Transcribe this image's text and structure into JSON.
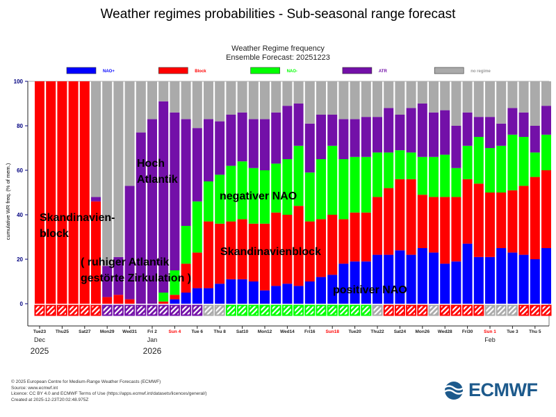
{
  "page_title": "Weather regimes probabilities - Sub-seasonal range forecast",
  "footer": {
    "lines": [
      "© 2025 European Centre for Medium-Range Weather Forecasts (ECMWF)",
      "Source: www.ecmwf.int",
      "Licence: CC BY 4.0 and ECMWF Terms of Use (https://apps.ecmwf.int/datasets/licences/general/)",
      "Created at 2025-12-23T20:02:48.975Z"
    ],
    "logo_text": "ECMWF"
  },
  "chart_data": {
    "type": "bar",
    "stacked": true,
    "title": "Weather Regime frequency",
    "subtitle": "Ensemble Forecast: 20251223",
    "ylabel": "cumulative WR freq. (% of mem.)",
    "xlabel": "",
    "ylim": [
      0,
      100
    ],
    "yticks": [
      0,
      20,
      40,
      60,
      80,
      100
    ],
    "grid": false,
    "legend_position": "top",
    "x_dates": [
      "2025-12-23",
      "2025-12-24",
      "2025-12-25",
      "2025-12-26",
      "2025-12-27",
      "2025-12-28",
      "2025-12-29",
      "2025-12-30",
      "2025-12-31",
      "2026-01-01",
      "2026-01-02",
      "2026-01-03",
      "2026-01-04",
      "2026-01-05",
      "2026-01-06",
      "2026-01-07",
      "2026-01-08",
      "2026-01-09",
      "2026-01-10",
      "2026-01-11",
      "2026-01-12",
      "2026-01-13",
      "2026-01-14",
      "2026-01-15",
      "2026-01-16",
      "2026-01-17",
      "2026-01-18",
      "2026-01-19",
      "2026-01-20",
      "2026-01-21",
      "2026-01-22",
      "2026-01-23",
      "2026-01-24",
      "2026-01-25",
      "2026-01-26",
      "2026-01-27",
      "2026-01-28",
      "2026-01-29",
      "2026-01-30",
      "2026-01-31",
      "2026-02-01",
      "2026-02-02",
      "2026-02-03",
      "2026-02-04",
      "2026-02-05",
      "2026-02-06"
    ],
    "tick_labels": [
      {
        "text": "Tue23",
        "sunday": false
      },
      {
        "text": "Thu25",
        "sunday": false
      },
      {
        "text": "Sat27",
        "sunday": false
      },
      {
        "text": "Mon29",
        "sunday": false
      },
      {
        "text": "Wed31",
        "sunday": false
      },
      {
        "text": "Fri 2",
        "sunday": false
      },
      {
        "text": "Sun 4",
        "sunday": true
      },
      {
        "text": "Tue 6",
        "sunday": false
      },
      {
        "text": "Thu 8",
        "sunday": false
      },
      {
        "text": "Sat10",
        "sunday": false
      },
      {
        "text": "Mon12",
        "sunday": false
      },
      {
        "text": "Wed14",
        "sunday": false
      },
      {
        "text": "Fri16",
        "sunday": false
      },
      {
        "text": "Sun18",
        "sunday": true
      },
      {
        "text": "Tue20",
        "sunday": false
      },
      {
        "text": "Thu22",
        "sunday": false
      },
      {
        "text": "Sat24",
        "sunday": false
      },
      {
        "text": "Mon26",
        "sunday": false
      },
      {
        "text": "Wed28",
        "sunday": false
      },
      {
        "text": "Fri30",
        "sunday": false
      },
      {
        "text": "Sun 1",
        "sunday": true
      },
      {
        "text": "Tue 3",
        "sunday": false
      },
      {
        "text": "Thu 5",
        "sunday": false
      }
    ],
    "month_labels": [
      {
        "month": "Dec",
        "year": "2025",
        "tick": 0
      },
      {
        "month": "Jan",
        "year": "2026",
        "tick": 5
      },
      {
        "month": "Feb",
        "year": "",
        "tick": 20
      }
    ],
    "series": [
      {
        "name": "NAO+",
        "color": "#0000ff",
        "values": [
          0,
          0,
          0,
          0,
          0,
          0,
          0,
          0,
          0,
          0,
          0,
          0,
          2,
          5,
          7,
          7,
          9,
          11,
          11,
          10,
          6,
          8,
          9,
          8,
          10,
          12,
          13,
          18,
          19,
          19,
          22,
          22,
          24,
          22,
          25,
          23,
          18,
          19,
          27,
          21,
          21,
          25,
          23,
          22,
          20,
          25
        ]
      },
      {
        "name": "Block",
        "color": "#ff0000",
        "values": [
          100,
          100,
          100,
          100,
          100,
          46,
          3,
          4,
          2,
          0,
          0,
          1,
          2,
          13,
          16,
          30,
          27,
          26,
          27,
          26,
          30,
          33,
          31,
          36,
          27,
          26,
          27,
          20,
          22,
          22,
          26,
          30,
          32,
          34,
          24,
          25,
          30,
          29,
          29,
          33,
          29,
          25,
          28,
          31,
          37,
          35
        ]
      },
      {
        "name": "NAO-",
        "color": "#00ff00",
        "values": [
          0,
          0,
          0,
          0,
          0,
          0,
          0,
          0,
          0,
          0,
          0,
          4,
          11,
          17,
          23,
          18,
          22,
          25,
          26,
          25,
          24,
          22,
          25,
          27,
          22,
          27,
          31,
          27,
          25,
          25,
          20,
          16,
          13,
          12,
          17,
          18,
          19,
          13,
          15,
          21,
          20,
          21,
          25,
          22,
          11,
          16
        ]
      },
      {
        "name": "ATR",
        "color": "#7310a8",
        "values": [
          0,
          0,
          0,
          0,
          0,
          2,
          14,
          17,
          51,
          77,
          83,
          86,
          71,
          48,
          33,
          28,
          24,
          23,
          22,
          22,
          23,
          23,
          24,
          19,
          22,
          20,
          14,
          18,
          17,
          18,
          16,
          20,
          16,
          20,
          24,
          20,
          20,
          19,
          15,
          9,
          14,
          10,
          12,
          11,
          12,
          13
        ]
      },
      {
        "name": "no regime",
        "color": "#aaaaaa",
        "values": [
          0,
          0,
          0,
          0,
          0,
          52,
          83,
          79,
          47,
          23,
          17,
          9,
          14,
          17,
          21,
          17,
          18,
          15,
          14,
          17,
          17,
          14,
          11,
          10,
          19,
          15,
          15,
          17,
          17,
          16,
          16,
          12,
          15,
          12,
          10,
          14,
          13,
          20,
          14,
          16,
          16,
          19,
          12,
          14,
          20,
          11
        ]
      }
    ],
    "dominant_regime": [
      "Block",
      "Block",
      "Block",
      "Block",
      "Block",
      "Block",
      "ATR",
      "ATR",
      "ATR",
      "ATR",
      "ATR",
      "ATR",
      "ATR",
      "ATR",
      "ATR",
      "no regime",
      "no regime",
      "NAO-",
      "NAO-",
      "NAO-",
      "NAO-",
      "NAO-",
      "NAO-",
      "NAO-",
      "NAO-",
      "NAO-",
      "NAO-",
      "NAO-",
      "NAO-",
      "NAO-",
      "no regime",
      "Block",
      "Block",
      "Block",
      "Block",
      "no regime",
      "Block",
      "Block",
      "Block",
      "Block",
      "no regime",
      "no regime",
      "no regime",
      "Block",
      "Block",
      "Block"
    ],
    "annotations": [
      {
        "id": "skand1",
        "lines": [
          "Skandinavien-",
          "block"
        ]
      },
      {
        "id": "hoch",
        "lines": [
          "Hoch",
          "Atlantik"
        ]
      },
      {
        "id": "ruhig",
        "lines": [
          "( ruhiger Atlantik",
          "gestörte Zirkulation )"
        ]
      },
      {
        "id": "negnao",
        "lines": [
          "negativer NAO"
        ]
      },
      {
        "id": "skand2",
        "lines": [
          "Skandinavienblock"
        ]
      },
      {
        "id": "posnao",
        "lines": [
          "positiver NAO"
        ]
      }
    ],
    "sunday_color": "#ff0000",
    "axis_label_color": "#000080"
  }
}
